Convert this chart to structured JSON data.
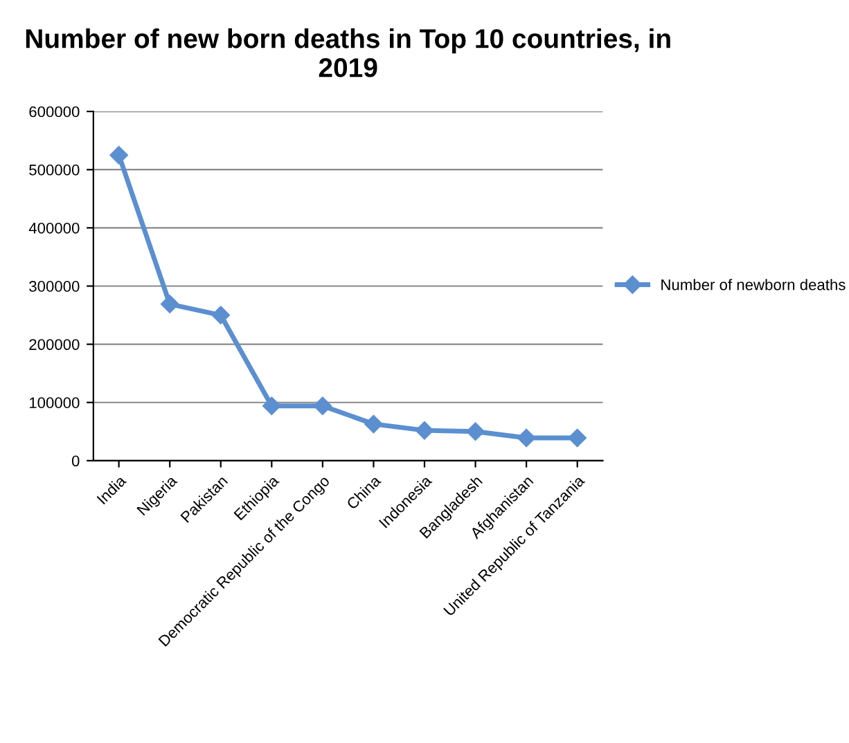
{
  "chart_data": {
    "type": "line",
    "title": "Number of new born deaths in Top 10 countries, in 2019",
    "categories": [
      "India",
      "Nigeria",
      "Pakistan",
      "Ethiopia",
      "Democratic Republic of the Congo",
      "China",
      "Indonesia",
      "Bangladesh",
      "Afghanistan",
      "United Republic of Tanzania"
    ],
    "series": [
      {
        "name": "Number of newborn deaths",
        "color": "#5b8fd0",
        "values": [
          525000,
          269000,
          250000,
          94000,
          94000,
          63000,
          52000,
          50000,
          39000,
          39000
        ]
      }
    ],
    "ylim": [
      0,
      600000
    ],
    "yticks": [
      0,
      100000,
      200000,
      300000,
      400000,
      500000,
      600000
    ],
    "grid": "y",
    "legend": "right",
    "marker": "diamond",
    "line_style": "solid"
  }
}
